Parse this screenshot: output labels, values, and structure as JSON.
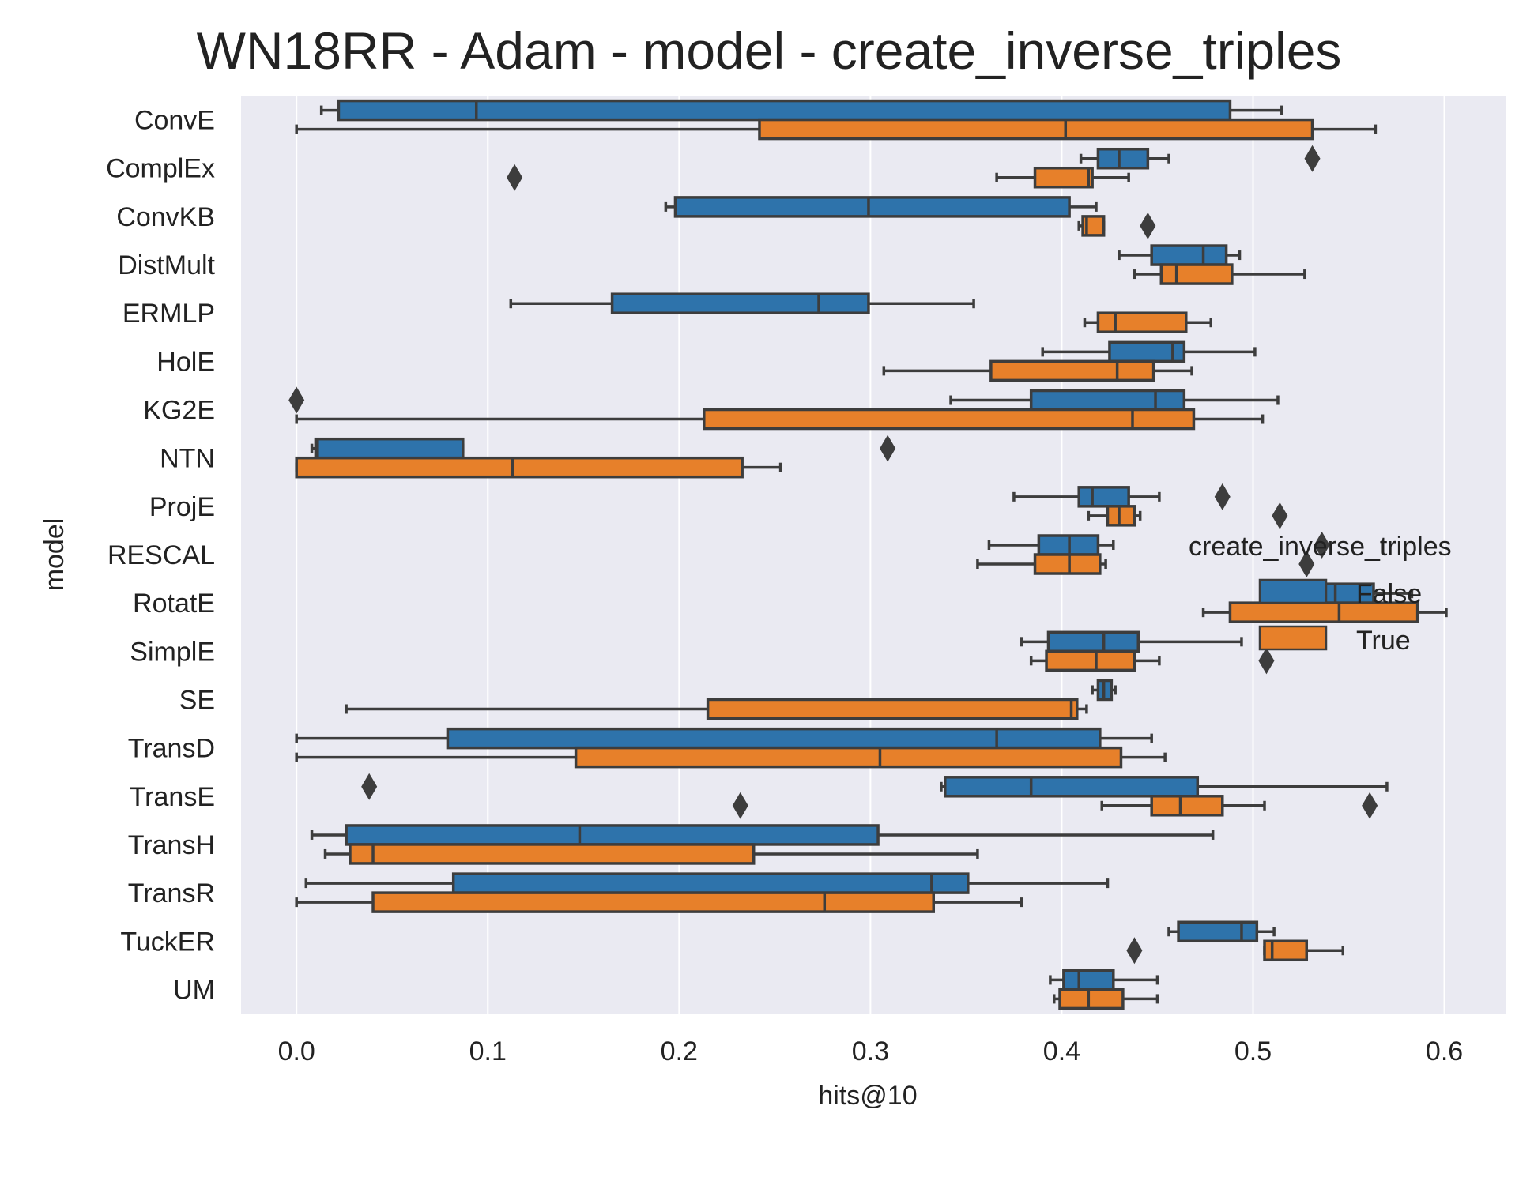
{
  "chart_data": {
    "type": "boxplot",
    "orientation": "horizontal",
    "title": "WN18RR - Adam - model - create_inverse_triples",
    "xlabel": "hits@10",
    "ylabel": "model",
    "xlim": [
      -0.029,
      0.632
    ],
    "xticks": [
      "0.0",
      "0.1",
      "0.2",
      "0.3",
      "0.4",
      "0.5",
      "0.6"
    ],
    "grid": true,
    "legend": {
      "title": "create_inverse_triples",
      "placement": "center-right",
      "entries": [
        {
          "label": "False",
          "color": "#2e73ab"
        },
        {
          "label": "True",
          "color": "#e7802a"
        }
      ]
    },
    "colors": {
      "plot_bg": "#eaeaf2",
      "grid": "#ffffff",
      "edge": "#3d3d3d"
    },
    "categories": [
      "ConvE",
      "ComplEx",
      "ConvKB",
      "DistMult",
      "ERMLP",
      "HolE",
      "KG2E",
      "NTN",
      "ProjE",
      "RESCAL",
      "RotatE",
      "SimplE",
      "SE",
      "TransD",
      "TransE",
      "TransH",
      "TransR",
      "TuckER",
      "UM"
    ],
    "series": [
      {
        "name": "False",
        "boxes": [
          {
            "whislo": 0.013,
            "q1": 0.022,
            "med": 0.094,
            "q3": 0.488,
            "whishi": 0.515,
            "fliers": []
          },
          {
            "whislo": 0.41,
            "q1": 0.419,
            "med": 0.43,
            "q3": 0.445,
            "whishi": 0.456,
            "fliers": [
              0.531
            ]
          },
          {
            "whislo": 0.193,
            "q1": 0.198,
            "med": 0.299,
            "q3": 0.404,
            "whishi": 0.418,
            "fliers": []
          },
          {
            "whislo": 0.43,
            "q1": 0.447,
            "med": 0.474,
            "q3": 0.486,
            "whishi": 0.493,
            "fliers": []
          },
          {
            "whislo": 0.112,
            "q1": 0.165,
            "med": 0.273,
            "q3": 0.299,
            "whishi": 0.354,
            "fliers": []
          },
          {
            "whislo": 0.39,
            "q1": 0.425,
            "med": 0.458,
            "q3": 0.464,
            "whishi": 0.501,
            "fliers": []
          },
          {
            "whislo": 0.342,
            "q1": 0.384,
            "med": 0.449,
            "q3": 0.464,
            "whishi": 0.513,
            "fliers": [
              0.0
            ]
          },
          {
            "whislo": 0.008,
            "q1": 0.01,
            "med": 0.011,
            "q3": 0.087,
            "whishi": 0.087,
            "fliers": [
              0.309
            ]
          },
          {
            "whislo": 0.375,
            "q1": 0.409,
            "med": 0.416,
            "q3": 0.435,
            "whishi": 0.451,
            "fliers": [
              0.484
            ]
          },
          {
            "whislo": 0.362,
            "q1": 0.388,
            "med": 0.404,
            "q3": 0.419,
            "whishi": 0.427,
            "fliers": [
              0.536
            ]
          },
          {
            "whislo": 0.504,
            "q1": 0.506,
            "med": 0.543,
            "q3": 0.563,
            "whishi": 0.583,
            "fliers": []
          },
          {
            "whislo": 0.379,
            "q1": 0.393,
            "med": 0.422,
            "q3": 0.44,
            "whishi": 0.494,
            "fliers": []
          },
          {
            "whislo": 0.416,
            "q1": 0.419,
            "med": 0.422,
            "q3": 0.426,
            "whishi": 0.428,
            "fliers": []
          },
          {
            "whislo": 0.0,
            "q1": 0.079,
            "med": 0.366,
            "q3": 0.42,
            "whishi": 0.447,
            "fliers": []
          },
          {
            "whislo": 0.337,
            "q1": 0.339,
            "med": 0.384,
            "q3": 0.471,
            "whishi": 0.57,
            "fliers": [
              0.038
            ]
          },
          {
            "whislo": 0.008,
            "q1": 0.026,
            "med": 0.148,
            "q3": 0.304,
            "whishi": 0.479,
            "fliers": []
          },
          {
            "whislo": 0.005,
            "q1": 0.082,
            "med": 0.332,
            "q3": 0.351,
            "whishi": 0.424,
            "fliers": []
          },
          {
            "whislo": 0.456,
            "q1": 0.461,
            "med": 0.494,
            "q3": 0.502,
            "whishi": 0.511,
            "fliers": []
          },
          {
            "whislo": 0.394,
            "q1": 0.401,
            "med": 0.409,
            "q3": 0.427,
            "whishi": 0.45,
            "fliers": []
          }
        ]
      },
      {
        "name": "True",
        "boxes": [
          {
            "whislo": 0.0,
            "q1": 0.242,
            "med": 0.402,
            "q3": 0.531,
            "whishi": 0.564,
            "fliers": []
          },
          {
            "whislo": 0.366,
            "q1": 0.386,
            "med": 0.414,
            "q3": 0.416,
            "whishi": 0.435,
            "fliers": [
              0.114
            ]
          },
          {
            "whislo": 0.409,
            "q1": 0.411,
            "med": 0.413,
            "q3": 0.422,
            "whishi": 0.422,
            "fliers": [
              0.445
            ]
          },
          {
            "whislo": 0.438,
            "q1": 0.452,
            "med": 0.46,
            "q3": 0.489,
            "whishi": 0.527,
            "fliers": []
          },
          {
            "whislo": 0.412,
            "q1": 0.419,
            "med": 0.428,
            "q3": 0.465,
            "whishi": 0.478,
            "fliers": []
          },
          {
            "whislo": 0.307,
            "q1": 0.363,
            "med": 0.429,
            "q3": 0.448,
            "whishi": 0.468,
            "fliers": []
          },
          {
            "whislo": 0.0,
            "q1": 0.213,
            "med": 0.437,
            "q3": 0.469,
            "whishi": 0.505,
            "fliers": []
          },
          {
            "whislo": 0.0,
            "q1": 0.0,
            "med": 0.113,
            "q3": 0.233,
            "whishi": 0.253,
            "fliers": []
          },
          {
            "whislo": 0.414,
            "q1": 0.424,
            "med": 0.43,
            "q3": 0.438,
            "whishi": 0.441,
            "fliers": [
              0.514
            ]
          },
          {
            "whislo": 0.356,
            "q1": 0.386,
            "med": 0.404,
            "q3": 0.42,
            "whishi": 0.423,
            "fliers": [
              0.528
            ]
          },
          {
            "whislo": 0.474,
            "q1": 0.488,
            "med": 0.545,
            "q3": 0.586,
            "whishi": 0.601,
            "fliers": []
          },
          {
            "whislo": 0.384,
            "q1": 0.392,
            "med": 0.418,
            "q3": 0.438,
            "whishi": 0.451,
            "fliers": [
              0.507
            ]
          },
          {
            "whislo": 0.026,
            "q1": 0.215,
            "med": 0.405,
            "q3": 0.408,
            "whishi": 0.413,
            "fliers": []
          },
          {
            "whislo": 0.0,
            "q1": 0.146,
            "med": 0.305,
            "q3": 0.431,
            "whishi": 0.454,
            "fliers": []
          },
          {
            "whislo": 0.421,
            "q1": 0.447,
            "med": 0.462,
            "q3": 0.484,
            "whishi": 0.506,
            "fliers": [
              0.232,
              0.561
            ]
          },
          {
            "whislo": 0.015,
            "q1": 0.028,
            "med": 0.04,
            "q3": 0.239,
            "whishi": 0.356,
            "fliers": []
          },
          {
            "whislo": 0.0,
            "q1": 0.04,
            "med": 0.276,
            "q3": 0.333,
            "whishi": 0.379,
            "fliers": []
          },
          {
            "whislo": 0.506,
            "q1": 0.506,
            "med": 0.51,
            "q3": 0.528,
            "whishi": 0.547,
            "fliers": [
              0.438
            ]
          },
          {
            "whislo": 0.396,
            "q1": 0.399,
            "med": 0.414,
            "q3": 0.432,
            "whishi": 0.45,
            "fliers": []
          }
        ]
      }
    ]
  }
}
